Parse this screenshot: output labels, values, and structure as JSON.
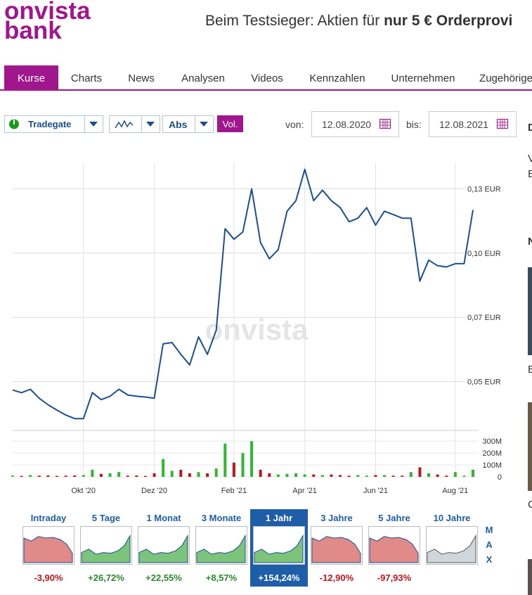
{
  "header": {
    "logo_top": "onvista",
    "logo_bottom": "bank",
    "ad_text": "Beim Testsieger: Aktien für ",
    "ad_bold": "nur 5 € Orderprovi"
  },
  "nav": {
    "tabs": [
      "Kurse",
      "Charts",
      "News",
      "Analysen",
      "Videos",
      "Kennzahlen",
      "Unternehmen",
      "Zugehörige"
    ],
    "active_tab": 0
  },
  "toolbar": {
    "exchange": "Tradegate",
    "mode": "Abs",
    "volume_button": "Vol.",
    "from_label": "von:",
    "from_date": "12.08.2020",
    "to_label": "bis:",
    "to_date": "12.08.2021"
  },
  "sidebar": [
    "D",
    "V",
    "E",
    "N",
    "E",
    "C"
  ],
  "chart_data": {
    "type": "line",
    "watermark": "onvista",
    "color": "#1a4f91",
    "grid": true,
    "categories": [
      null,
      null,
      null,
      null,
      null,
      null,
      null,
      null,
      "Okt '20",
      null,
      null,
      null,
      null,
      null,
      null,
      null,
      "Dez '20",
      null,
      null,
      null,
      null,
      null,
      null,
      null,
      null,
      "Feb '21",
      null,
      null,
      null,
      null,
      null,
      null,
      null,
      "Apr '21",
      null,
      null,
      null,
      null,
      null,
      null,
      null,
      "Jun '21",
      null,
      null,
      null,
      null,
      null,
      null,
      null,
      null,
      "Aug '21",
      null,
      null
    ],
    "values": [
      0.0467,
      0.0457,
      0.047,
      0.0435,
      0.041,
      0.0389,
      0.037,
      0.0356,
      0.0356,
      0.0457,
      0.043,
      0.0443,
      0.047,
      0.0448,
      0.0443,
      0.044,
      0.0435,
      0.0647,
      0.0652,
      0.0606,
      0.0565,
      0.0674,
      0.0606,
      0.07,
      0.1095,
      0.1054,
      0.1082,
      0.125,
      0.1041,
      0.0978,
      0.1014,
      0.1163,
      0.1204,
      0.1326,
      0.1204,
      0.1245,
      0.1204,
      0.1177,
      0.1122,
      0.1136,
      0.1177,
      0.1109,
      0.1163,
      0.115,
      0.1136,
      0.1136,
      0.0891,
      0.0973,
      0.0951,
      0.0946,
      0.0959,
      0.0959,
      0.1168
    ],
    "ylim": [
      0.031,
      0.135
    ],
    "yticks": [
      {
        "value": 0.125,
        "label": "0,13 EUR"
      },
      {
        "value": 0.1,
        "label": "0,10 EUR"
      },
      {
        "value": 0.075,
        "label": "0,07 EUR"
      },
      {
        "value": 0.05,
        "label": "0,05 EUR"
      }
    ],
    "volume": {
      "axis": "y2",
      "up_color": "#2db82d",
      "down_color": "#c0161b",
      "values": [
        10,
        8,
        15,
        10,
        12,
        8,
        10,
        12,
        15,
        60,
        25,
        30,
        40,
        10,
        12,
        8,
        30,
        150,
        50,
        60,
        30,
        40,
        30,
        70,
        280,
        120,
        200,
        300,
        60,
        30,
        20,
        25,
        30,
        20,
        20,
        15,
        20,
        15,
        10,
        15,
        10,
        15,
        15,
        10,
        10,
        40,
        80,
        30,
        20,
        10,
        40,
        10,
        60
      ]
    },
    "y2lim": [
      0,
      390
    ],
    "y2ticks": [
      {
        "value": 300,
        "label": "300M"
      },
      {
        "value": 200,
        "label": "200M"
      },
      {
        "value": 100,
        "label": "100M"
      },
      0
    ]
  },
  "periods": [
    {
      "label": "Intraday",
      "change": -3.9,
      "change_label": "-3,90%"
    },
    {
      "label": "5 Tage",
      "change": 26.72,
      "change_label": "+26,72%"
    },
    {
      "label": "1 Monat",
      "change": 22.55,
      "change_label": "+22,55%"
    },
    {
      "label": "3 Monate",
      "change": 8.57,
      "change_label": "+8,57%"
    },
    {
      "label": "1 Jahr",
      "change": 154.24,
      "change_label": "+154,24%",
      "active": true
    },
    {
      "label": "3 Jahre",
      "change": -12.9,
      "change_label": "-12,90%"
    },
    {
      "label": "5 Jahre",
      "change": -97.93,
      "change_label": "-97,93%"
    },
    {
      "label": "10 Jahre"
    }
  ],
  "max_button": [
    "M",
    "A",
    "X"
  ]
}
